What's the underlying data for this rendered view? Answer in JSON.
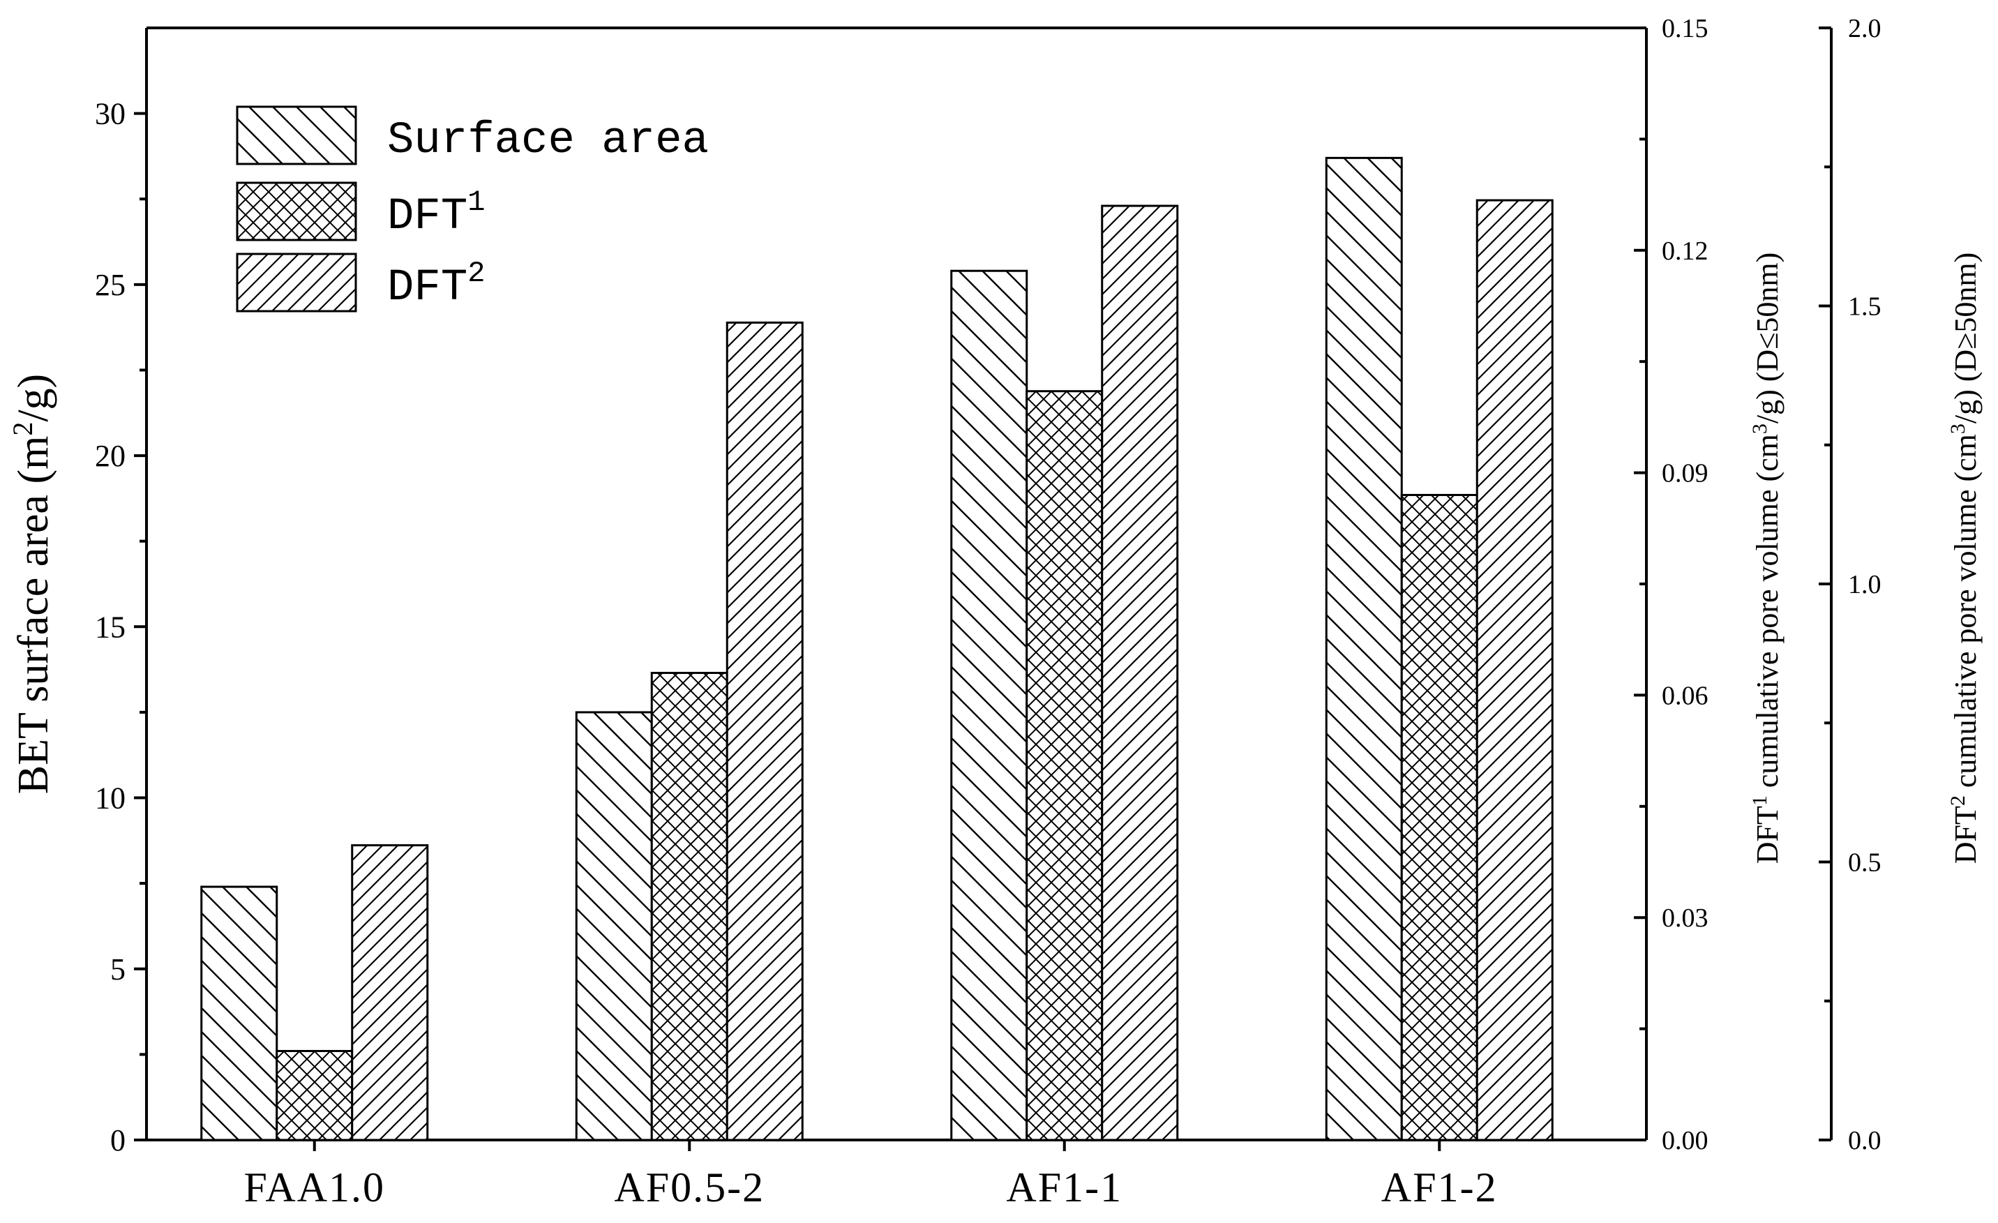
{
  "chart_data": {
    "type": "bar",
    "categories": [
      "FAA1.0",
      "AF0.5-2",
      "AF1-1",
      "AF1-2"
    ],
    "series": [
      {
        "name": "Surface area",
        "name_sup": "",
        "pattern": "hatch-back",
        "axis": "left",
        "values": [
          7.4,
          12.5,
          25.4,
          28.7
        ]
      },
      {
        "name": "DFT",
        "name_sup": "1",
        "pattern": "crosshatch",
        "axis": "right1",
        "values": [
          0.012,
          0.063,
          0.101,
          0.087
        ]
      },
      {
        "name": "DFT",
        "name_sup": "2",
        "pattern": "hatch-fwd",
        "axis": "right2",
        "values": [
          0.53,
          1.47,
          1.68,
          1.69
        ]
      }
    ],
    "axes": {
      "left": {
        "title": "BET surface area (m",
        "title_sup": "2",
        "title_end": "/g)",
        "ylim": [
          0,
          32.5
        ],
        "ticks": [
          0,
          5,
          10,
          15,
          20,
          25,
          30
        ],
        "tick_labels": [
          "0",
          "5",
          "10",
          "15",
          "20",
          "25",
          "30"
        ]
      },
      "right1": {
        "title_a": "DFT",
        "title_sup1": "1",
        "title_b": " cumulative pore volume (cm",
        "title_sup2": "3",
        "title_c": "/g) (D",
        "title_op": "≤",
        "title_d": "50nm)",
        "ylim": [
          0,
          0.15
        ],
        "ticks": [
          0,
          0.03,
          0.06,
          0.09,
          0.12,
          0.15
        ],
        "tick_labels": [
          "0.00",
          "0.03",
          "0.06",
          "0.09",
          "0.12",
          "0.15"
        ]
      },
      "right2": {
        "title_a": "DFT",
        "title_sup1": "2",
        "title_b": " cumulative pore volume (cm",
        "title_sup2": "3",
        "title_c": "/g) (D",
        "title_op": "≥",
        "title_d": "50nm)",
        "ylim": [
          0,
          2.0
        ],
        "ticks": [
          0,
          0.5,
          1.0,
          1.5,
          2.0
        ],
        "tick_labels": [
          "0.0",
          "0.5",
          "1.0",
          "1.5",
          "2.0"
        ]
      }
    },
    "legend_position": "top-left",
    "grid": false
  }
}
